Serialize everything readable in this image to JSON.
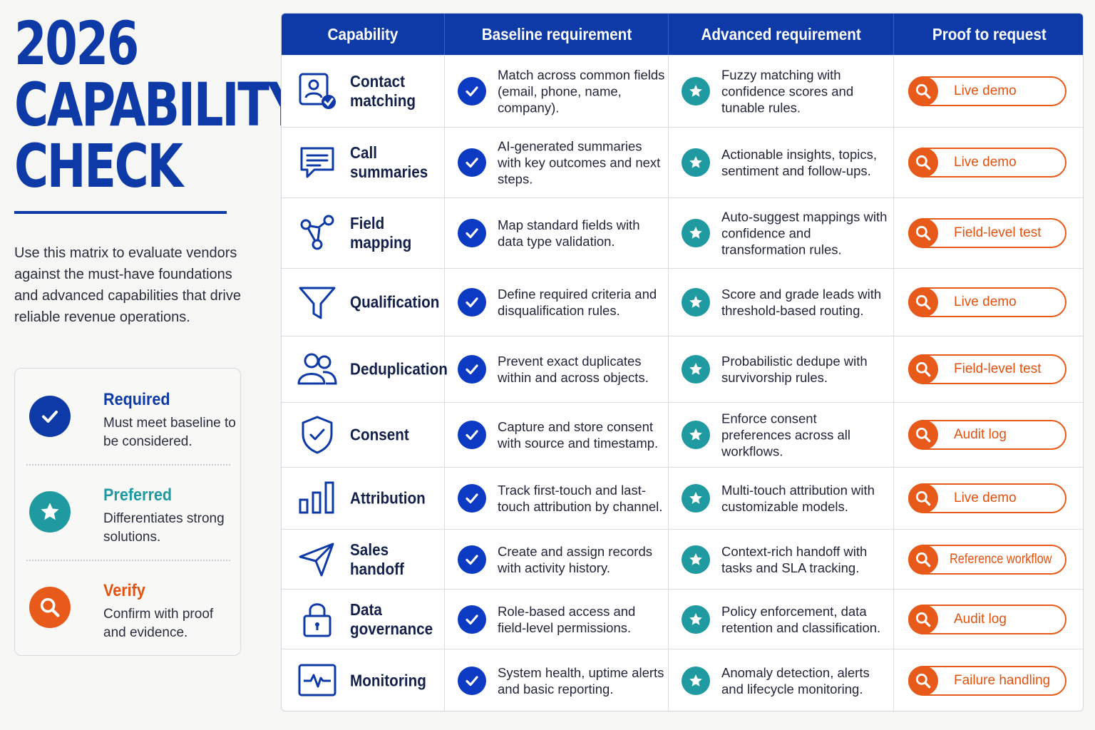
{
  "header": {
    "title_lines": [
      "2026",
      "CAPABILITY",
      "CHECK"
    ],
    "intro": "Use this matrix to evaluate vendors against the must-have foundations and advanced capabilities that drive reliable revenue operations."
  },
  "legend": [
    {
      "name": "Required",
      "desc": "Must meet baseline to be considered.",
      "color": "#0d3aa6",
      "icon": "check-icon"
    },
    {
      "name": "Preferred",
      "desc": "Differentiates strong solutions.",
      "color": "#1e9aa0",
      "icon": "star-icon"
    },
    {
      "name": "Verify",
      "desc": "Confirm with proof and evidence.",
      "color": "#e85a1a",
      "icon": "magnifier-icon"
    }
  ],
  "table": {
    "headers": [
      "Capability",
      "Baseline requirement",
      "Advanced requirement",
      "Proof to request"
    ],
    "rows": [
      {
        "capability": "Contact matching",
        "icon": "contact-check-icon",
        "baseline": "Match across common fields (email, phone, name, company).",
        "advanced": "Fuzzy matching with confidence scores and tunable rules.",
        "proof": "Live demo"
      },
      {
        "capability": "Call summaries",
        "icon": "chat-lines-icon",
        "baseline": "AI-generated summaries with key outcomes and next steps.",
        "advanced": "Actionable insights, topics, sentiment and follow-ups.",
        "proof": "Live demo"
      },
      {
        "capability": "Field mapping",
        "icon": "nodes-icon",
        "baseline": "Map standard fields with data type validation.",
        "advanced": "Auto-suggest mappings with confidence and transformation rules.",
        "proof": "Field-level test"
      },
      {
        "capability": "Qualification",
        "icon": "funnel-icon",
        "baseline": "Define required criteria and disqualification rules.",
        "advanced": "Score and grade leads with threshold-based routing.",
        "proof": "Live demo"
      },
      {
        "capability": "Deduplication",
        "icon": "users-icon",
        "baseline": "Prevent exact duplicates within and across objects.",
        "advanced": "Probabilistic dedupe with survivorship rules.",
        "proof": "Field-level test"
      },
      {
        "capability": "Consent",
        "icon": "shield-check-icon",
        "baseline": "Capture and store consent with source and timestamp.",
        "advanced": "Enforce consent preferences across all workflows.",
        "proof": "Audit log"
      },
      {
        "capability": "Attribution",
        "icon": "bar-chart-icon",
        "baseline": "Track first-touch and last-touch attribution by channel.",
        "advanced": "Multi-touch attribution with customizable models.",
        "proof": "Live demo"
      },
      {
        "capability": "Sales handoff",
        "icon": "paper-plane-icon",
        "baseline": "Create and assign records with activity history.",
        "advanced": "Context-rich handoff with tasks and SLA tracking.",
        "proof": "Reference workflow"
      },
      {
        "capability": "Data governance",
        "icon": "padlock-icon",
        "baseline": "Role-based access and field-level permissions.",
        "advanced": "Policy enforcement, data retention and classification.",
        "proof": "Audit log"
      },
      {
        "capability": "Monitoring",
        "icon": "pulse-monitor-icon",
        "baseline": "System health, uptime alerts and basic reporting.",
        "advanced": "Anomaly detection, alerts and lifecycle monitoring.",
        "proof": "Failure handling"
      }
    ]
  },
  "colors": {
    "primary": "#0d3aa6",
    "teal": "#1e9aa0",
    "orange": "#e85a1a"
  }
}
